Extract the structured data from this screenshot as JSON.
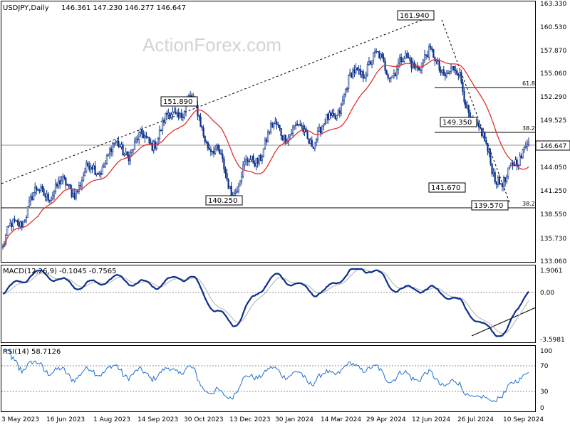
{
  "header": {
    "symbol": "USDJPY,Daily",
    "ohlc": "146.361 147.230 146.277 146.647"
  },
  "watermark": "ActionForex.com",
  "price_panel": {
    "current_price": "146.647",
    "y_ticks": [
      "163.330",
      "160.530",
      "157.870",
      "155.060",
      "152.290",
      "149.525",
      "146.647",
      "144.050",
      "141.250",
      "138.550",
      "135.730",
      "133.060"
    ],
    "level_labels": [
      "161.940",
      "151.890",
      "149.350",
      "141.670",
      "140.250",
      "139.570"
    ],
    "fib_labels": [
      "61.8",
      "38.2",
      "38.2"
    ]
  },
  "macd_panel": {
    "label": "MACD(12,26,9) -0.1045 -0.7565",
    "y_ticks": [
      "1.9061",
      "0.00",
      "-3.5981"
    ]
  },
  "rsi_panel": {
    "label": "RSI(14) 58.7126",
    "y_ticks": [
      "100",
      "70",
      "30",
      "0"
    ]
  },
  "x_ticks": [
    "3 May 2023",
    "16 Jun 2023",
    "1 Aug 2023",
    "14 Sep 2023",
    "30 Oct 2023",
    "13 Dec 2023",
    "30 Jan 2024",
    "14 Mar 2024",
    "29 Apr 2024",
    "12 Jun 2024",
    "26 Jul 2024",
    "10 Sep 2024"
  ],
  "colors": {
    "candles": "#0b2f8a",
    "ma_line": "#e0312b",
    "macd_line": "#0b2f8a",
    "macd_signal": "#b0b0b0",
    "rsi_line": "#1f6fd0",
    "grid": "#909090"
  },
  "chart_data": [
    {
      "type": "candlestick",
      "title": "USDJPY,Daily",
      "ylim": [
        133.06,
        163.33
      ],
      "x_labels": [
        "3 May 2023",
        "16 Jun 2023",
        "1 Aug 2023",
        "14 Sep 2023",
        "30 Oct 2023",
        "13 Dec 2023",
        "30 Jan 2024",
        "14 Mar 2024",
        "29 Apr 2024",
        "12 Jun 2024",
        "26 Jul 2024",
        "10 Sep 2024"
      ],
      "close_path": [
        {
          "x": "3 May 2023",
          "y": 134.5
        },
        {
          "x": "16 Jun 2023",
          "y": 141.9
        },
        {
          "x": "1 Aug 2023",
          "y": 143.3
        },
        {
          "x": "14 Sep 2023",
          "y": 147.5
        },
        {
          "x": "30 Oct 2023",
          "y": 151.0
        },
        {
          "x": "13 Dec 2023",
          "y": 142.6
        },
        {
          "x": "30 Jan 2024",
          "y": 147.7
        },
        {
          "x": "14 Mar 2024",
          "y": 149.0
        },
        {
          "x": "29 Apr 2024",
          "y": 156.0
        },
        {
          "x": "12 Jun 2024",
          "y": 157.2
        },
        {
          "x": "26 Jul 2024",
          "y": 153.8
        },
        {
          "x": "10 Sep 2024",
          "y": 141.5
        },
        {
          "x": "current",
          "y": 146.647
        }
      ],
      "levels": [
        {
          "label": "161.940",
          "value": 161.94
        },
        {
          "label": "151.890",
          "value": 151.89
        },
        {
          "label": "149.350",
          "value": 149.35
        },
        {
          "label": "141.670",
          "value": 141.67
        },
        {
          "label": "140.250",
          "value": 140.25
        },
        {
          "label": "139.570",
          "value": 139.57
        }
      ],
      "fibonacci": [
        {
          "label": "61.8",
          "value": 153.5
        },
        {
          "label": "38.2",
          "value": 148.3
        },
        {
          "label": "38.2",
          "value": 139.3
        }
      ],
      "indicator": "moving average (red)"
    },
    {
      "type": "line",
      "title": "MACD(12,26,9) -0.1045 -0.7565",
      "ylim": [
        -3.5981,
        1.9061
      ],
      "series": [
        {
          "name": "MACD",
          "last": -0.1045
        },
        {
          "name": "Signal",
          "last": -0.7565
        }
      ]
    },
    {
      "type": "line",
      "title": "RSI(14) 58.7126",
      "ylim": [
        0,
        100
      ],
      "reference_lines": [
        70,
        30
      ],
      "series": [
        {
          "name": "RSI",
          "last": 58.7126
        }
      ]
    }
  ]
}
